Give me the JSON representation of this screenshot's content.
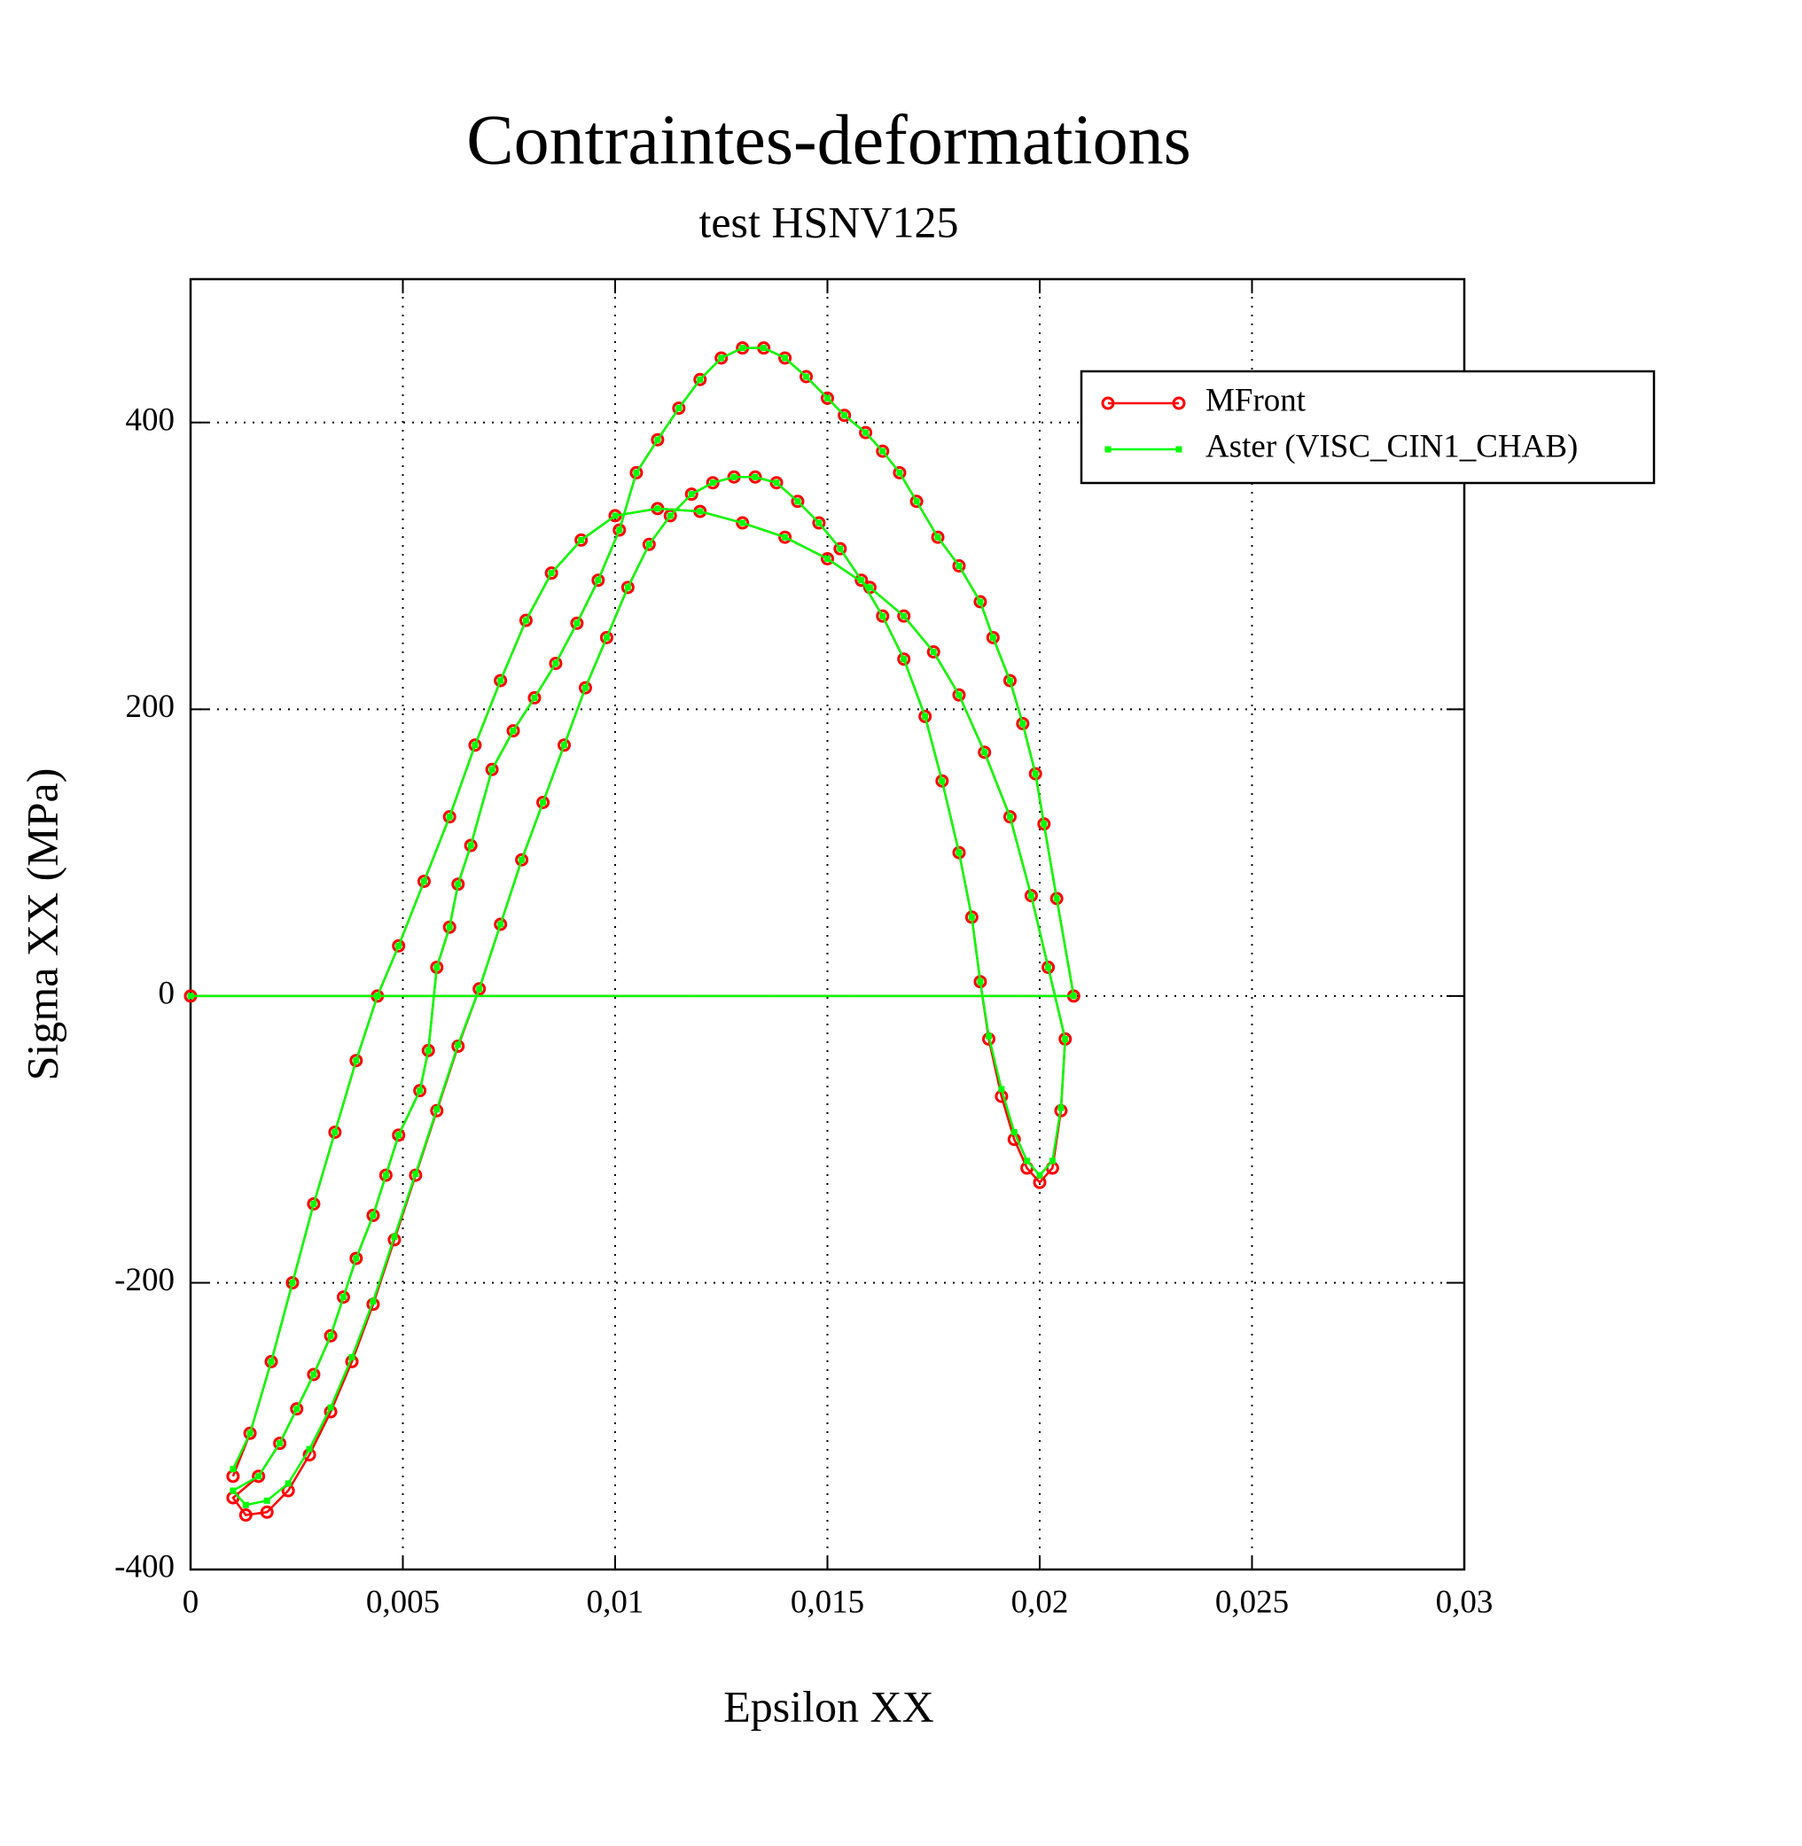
{
  "chart_data": {
    "type": "line",
    "title": "Contraintes-deformations",
    "subtitle": "test HSNV125",
    "x_label": "Epsilon XX",
    "y_label": "Sigma XX (MPa)",
    "xlim": [
      0,
      0.03
    ],
    "ylim": [
      -400,
      500
    ],
    "xticks": [
      0,
      {
        "value": 0.005,
        "label": "0,005"
      },
      {
        "value": 0.01,
        "label": "0,01"
      },
      {
        "value": 0.015,
        "label": "0,015"
      },
      {
        "value": 0.02,
        "label": "0,02"
      },
      {
        "value": 0.025,
        "label": "0,025"
      },
      {
        "value": 0.03,
        "label": "0,03"
      }
    ],
    "yticks": [
      -400,
      -200,
      0,
      200,
      400
    ],
    "grid": true,
    "legend": "upper right",
    "series": [
      {
        "name": "MFront",
        "color": "#ff0000",
        "marker": "circle",
        "x": [
          0,
          0.0208,
          0.0204,
          0.0201,
          0.0199,
          0.0196,
          0.0193,
          0.0189,
          0.0186,
          0.0181,
          0.0176,
          0.0171,
          0.0167,
          0.0163,
          0.0159,
          0.0154,
          0.015,
          0.0145,
          0.014,
          0.0135,
          0.013,
          0.0125,
          0.012,
          0.0115,
          0.011,
          0.0105,
          0.0101,
          0.0096,
          0.0091,
          0.0086,
          0.0081,
          0.0076,
          0.0071,
          0.0066,
          0.0063,
          0.0061,
          0.0058,
          0.0056,
          0.0054,
          0.0049,
          0.0046,
          0.0043,
          0.0039,
          0.0036,
          0.0033,
          0.0029,
          0.0025,
          0.0021,
          0.0016,
          0.001,
          0.0013,
          0.0018,
          0.0023,
          0.0028,
          0.0033,
          0.0038,
          0.0043,
          0.0048,
          0.0053,
          0.0058,
          0.0063,
          0.0068,
          0.0073,
          0.0078,
          0.0083,
          0.0088,
          0.0093,
          0.0098,
          0.0103,
          0.0108,
          0.0113,
          0.0118,
          0.0123,
          0.0128,
          0.0133,
          0.0138,
          0.0143,
          0.0148,
          0.0153,
          0.0158,
          0.0163,
          0.0168,
          0.0173,
          0.0177,
          0.0181,
          0.0184,
          0.0186,
          0.0188,
          0.0191,
          0.0194,
          0.0197,
          0.02,
          0.0203,
          0.0205,
          0.0206,
          0.0202,
          0.0198,
          0.0193,
          0.0187,
          0.0181,
          0.0175,
          0.0168,
          0.016,
          0.015,
          0.014,
          0.013,
          0.012,
          0.011,
          0.01,
          0.0092,
          0.0085,
          0.0079,
          0.0073,
          0.0067,
          0.0061,
          0.0055,
          0.0049,
          0.0044,
          0.0039,
          0.0034,
          0.0029,
          0.0024,
          0.0019,
          0.0014,
          0.001
        ],
        "values": [
          0,
          0,
          68,
          120,
          155,
          190,
          220,
          250,
          275,
          300,
          320,
          345,
          365,
          380,
          393,
          405,
          417,
          432,
          445,
          452,
          452,
          445,
          430,
          410,
          388,
          365,
          325,
          290,
          260,
          232,
          208,
          185,
          158,
          105,
          78,
          48,
          20,
          -38,
          -66,
          -97,
          -125,
          -153,
          -183,
          -210,
          -237,
          -264,
          -288,
          -312,
          -335,
          -350,
          -362,
          -360,
          -345,
          -320,
          -290,
          -255,
          -215,
          -170,
          -125,
          -80,
          -35,
          5,
          50,
          95,
          135,
          175,
          215,
          250,
          285,
          315,
          335,
          350,
          358,
          362,
          362,
          358,
          345,
          330,
          312,
          290,
          265,
          235,
          195,
          150,
          100,
          55,
          10,
          -30,
          -70,
          -100,
          -120,
          -130,
          -120,
          -80,
          -30,
          20,
          70,
          125,
          170,
          210,
          240,
          265,
          285,
          305,
          320,
          330,
          338,
          340,
          335,
          318,
          295,
          262,
          220,
          175,
          125,
          80,
          35,
          0,
          -45,
          -95,
          -145,
          -200,
          -255,
          -305,
          -335
        ]
      },
      {
        "name": "Aster (VISC_CIN1_CHAB)",
        "color": "#00ff00",
        "marker": "square",
        "x": [
          0,
          0.0208,
          0.0204,
          0.0201,
          0.0199,
          0.0196,
          0.0193,
          0.0189,
          0.0186,
          0.0181,
          0.0176,
          0.0171,
          0.0167,
          0.0163,
          0.0159,
          0.0154,
          0.015,
          0.0145,
          0.014,
          0.0135,
          0.013,
          0.0125,
          0.012,
          0.0115,
          0.011,
          0.0105,
          0.0101,
          0.0096,
          0.0091,
          0.0086,
          0.0081,
          0.0076,
          0.0071,
          0.0066,
          0.0063,
          0.0061,
          0.0058,
          0.0056,
          0.0054,
          0.0049,
          0.0046,
          0.0043,
          0.0039,
          0.0036,
          0.0033,
          0.0029,
          0.0025,
          0.0021,
          0.0016,
          0.001,
          0.0013,
          0.0018,
          0.0023,
          0.0028,
          0.0033,
          0.0038,
          0.0043,
          0.0048,
          0.0053,
          0.0058,
          0.0063,
          0.0068,
          0.0073,
          0.0078,
          0.0083,
          0.0088,
          0.0093,
          0.0098,
          0.0103,
          0.0108,
          0.0113,
          0.0118,
          0.0123,
          0.0128,
          0.0133,
          0.0138,
          0.0143,
          0.0148,
          0.0153,
          0.0158,
          0.0163,
          0.0168,
          0.0173,
          0.0177,
          0.0181,
          0.0184,
          0.0186,
          0.0188,
          0.0191,
          0.0194,
          0.0197,
          0.02,
          0.0203,
          0.0205,
          0.0206,
          0.0202,
          0.0198,
          0.0193,
          0.0187,
          0.0181,
          0.0175,
          0.0168,
          0.016,
          0.015,
          0.014,
          0.013,
          0.012,
          0.011,
          0.01,
          0.0092,
          0.0085,
          0.0079,
          0.0073,
          0.0067,
          0.0061,
          0.0055,
          0.0049,
          0.0044,
          0.0039,
          0.0034,
          0.0029,
          0.0024,
          0.0019,
          0.0014,
          0.001
        ],
        "values": [
          0,
          0,
          68,
          120,
          155,
          190,
          220,
          250,
          275,
          300,
          320,
          345,
          365,
          380,
          393,
          405,
          417,
          432,
          445,
          452,
          452,
          445,
          430,
          410,
          388,
          365,
          325,
          290,
          260,
          232,
          208,
          185,
          158,
          105,
          78,
          48,
          20,
          -38,
          -66,
          -97,
          -125,
          -153,
          -183,
          -210,
          -237,
          -264,
          -288,
          -312,
          -335,
          -345,
          -355,
          -352,
          -340,
          -316,
          -287,
          -252,
          -213,
          -168,
          -124,
          -79,
          -34,
          5,
          50,
          95,
          135,
          175,
          215,
          250,
          285,
          315,
          335,
          350,
          358,
          362,
          362,
          358,
          345,
          330,
          312,
          290,
          265,
          235,
          195,
          150,
          100,
          55,
          10,
          -28,
          -65,
          -95,
          -115,
          -125,
          -115,
          -78,
          -30,
          20,
          70,
          125,
          170,
          210,
          240,
          265,
          285,
          305,
          320,
          330,
          338,
          340,
          335,
          318,
          295,
          262,
          220,
          175,
          125,
          80,
          35,
          0,
          -45,
          -95,
          -145,
          -200,
          -255,
          -305,
          -330
        ]
      }
    ]
  }
}
